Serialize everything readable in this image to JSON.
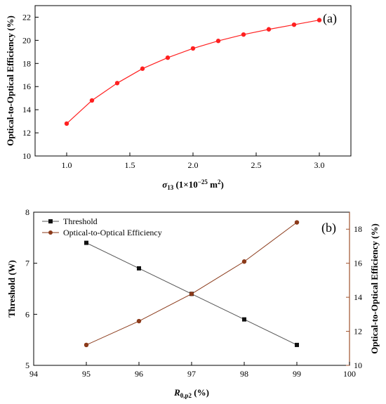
{
  "chart_data": [
    {
      "type": "line",
      "panel_label": "(a)",
      "xlabel_main": "σ",
      "xlabel_sub": "13",
      "xlabel_units": " (1×10",
      "xlabel_exp": "−25",
      "xlabel_unit2": " m",
      "xlabel_exp2": "2",
      "xlabel_close": ")",
      "ylabel": "Optical-to-Optical Efficiency (%)",
      "xlim": [
        0.75,
        3.25
      ],
      "ylim": [
        10,
        23
      ],
      "xticks": [
        "1.0",
        "1.5",
        "2.0",
        "2.5",
        "3.0"
      ],
      "xtick_values": [
        1.0,
        1.5,
        2.0,
        2.5,
        3.0
      ],
      "yticks": [
        "10",
        "12",
        "14",
        "16",
        "18",
        "20",
        "22"
      ],
      "ytick_values": [
        10,
        12,
        14,
        16,
        18,
        20,
        22
      ],
      "series": [
        {
          "color": "#ff2020",
          "marker": "circle",
          "x": [
            1.0,
            1.2,
            1.4,
            1.6,
            1.8,
            2.0,
            2.2,
            2.4,
            2.6,
            2.8,
            3.0
          ],
          "y": [
            12.8,
            14.8,
            16.3,
            17.55,
            18.5,
            19.3,
            19.95,
            20.5,
            20.95,
            21.35,
            21.75
          ]
        }
      ]
    },
    {
      "type": "line",
      "panel_label": "(b)",
      "xlabel_main": "R",
      "xlabel_sub": "0,p2",
      "xlabel_units": " (%)",
      "ylabel_left": "Threshold (W)",
      "ylabel_right": "Optical-to-Optical Efficiency (%)",
      "xlim": [
        94,
        100
      ],
      "ylim_left": [
        5,
        8
      ],
      "ylim_right": [
        10,
        19
      ],
      "xticks": [
        "94",
        "95",
        "96",
        "97",
        "98",
        "99",
        "100"
      ],
      "xtick_values": [
        94,
        95,
        96,
        97,
        98,
        99,
        100
      ],
      "yticks_left": [
        "5",
        "6",
        "7",
        "8"
      ],
      "ytick_left_values": [
        5,
        6,
        7,
        8
      ],
      "yticks_right": [
        "10",
        "12",
        "14",
        "16",
        "18"
      ],
      "ytick_right_values": [
        10,
        12,
        14,
        16,
        18
      ],
      "legend": [
        "Threshold",
        "Optical-to-Optical Efficiency"
      ],
      "series": [
        {
          "name": "Threshold",
          "axis": "left",
          "color": "#111111",
          "marker": "square",
          "x": [
            95,
            96,
            97,
            98,
            99
          ],
          "y": [
            7.4,
            6.9,
            6.4,
            5.9,
            5.4
          ]
        },
        {
          "name": "Optical-to-Optical Efficiency",
          "axis": "right",
          "color": "#8b3a1a",
          "marker": "circle",
          "x": [
            95,
            96,
            97,
            98,
            99
          ],
          "y": [
            11.2,
            12.6,
            14.2,
            16.1,
            18.4
          ]
        }
      ],
      "right_axis_color": "#a0522d"
    }
  ]
}
